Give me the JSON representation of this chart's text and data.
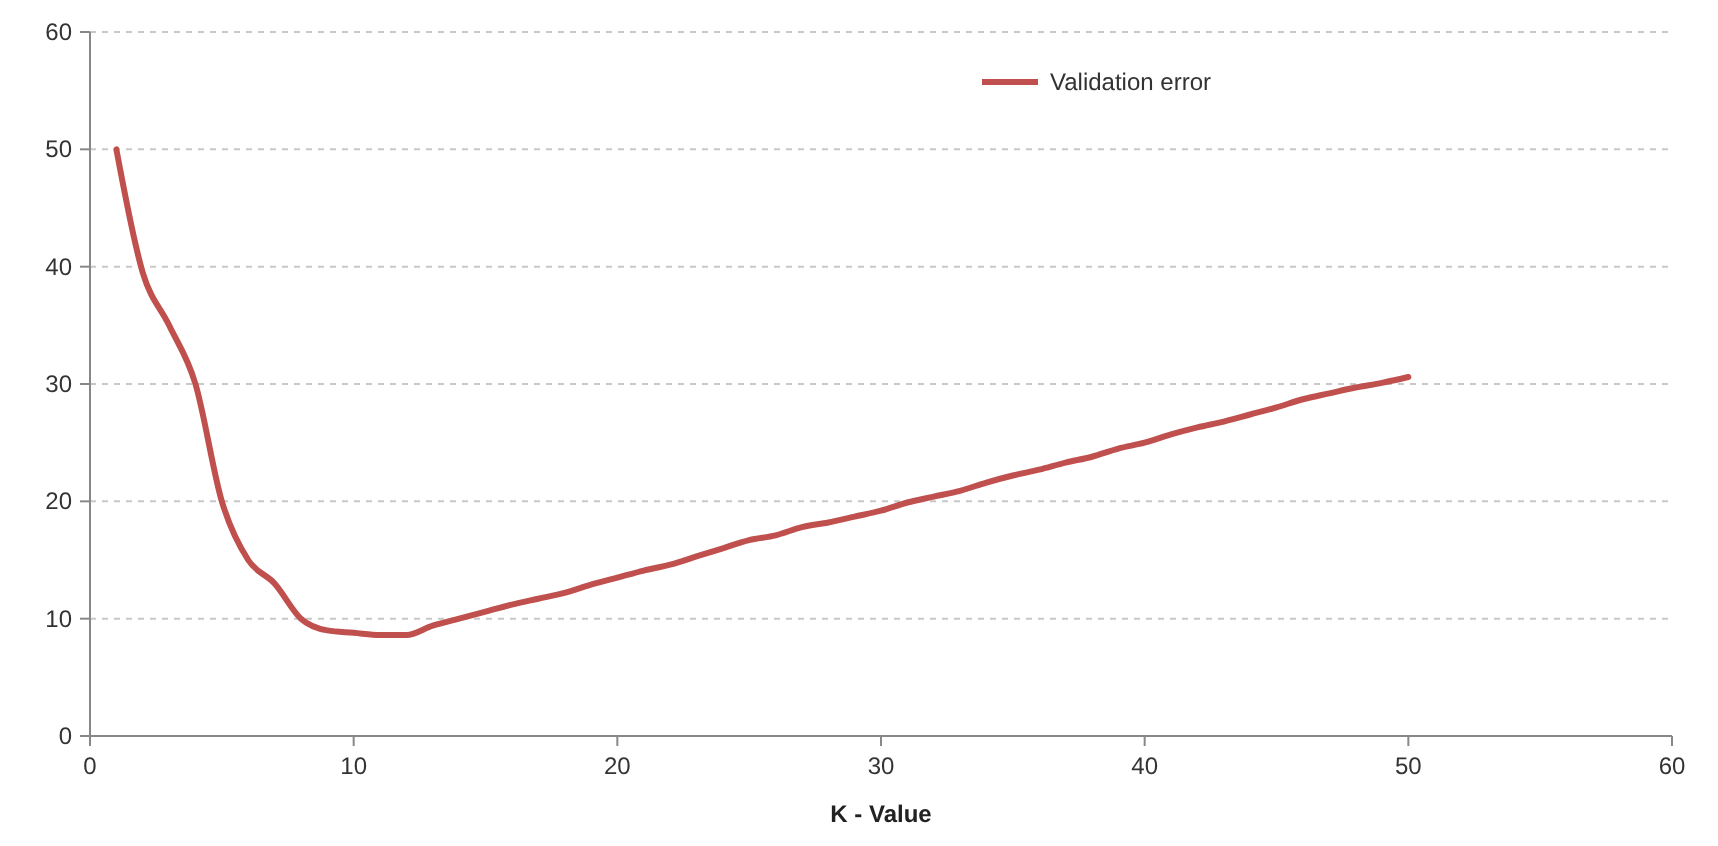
{
  "chart_data": {
    "type": "line",
    "xlabel": "K - Value",
    "x": [
      1,
      2,
      3,
      4,
      5,
      6,
      7,
      8,
      9,
      10,
      11,
      12,
      13,
      14,
      15,
      16,
      17,
      18,
      19,
      20,
      21,
      22,
      23,
      24,
      25,
      26,
      27,
      28,
      29,
      30,
      31,
      32,
      33,
      34,
      35,
      36,
      37,
      38,
      39,
      40,
      41,
      42,
      43,
      44,
      45,
      46,
      47,
      48,
      49,
      50
    ],
    "series": [
      {
        "name": "Validation error",
        "color": "#c0504d",
        "values": [
          50,
          39.5,
          35,
          30,
          20,
          15,
          13,
          10,
          9,
          8.8,
          8.6,
          8.6,
          9.4,
          10,
          10.6,
          11.2,
          11.7,
          12.2,
          12.9,
          13.5,
          14.1,
          14.6,
          15.3,
          16,
          16.7,
          17.1,
          17.8,
          18.2,
          18.7,
          19.2,
          19.9,
          20.4,
          20.9,
          21.6,
          22.2,
          22.7,
          23.3,
          23.8,
          24.5,
          25,
          25.7,
          26.3,
          26.8,
          27.4,
          28,
          28.7,
          29.2,
          29.7,
          30.1,
          30.6
        ]
      }
    ],
    "xlim": [
      0,
      60
    ],
    "xticks": [
      0,
      10,
      20,
      30,
      40,
      50,
      60
    ],
    "ylim": [
      0,
      60
    ],
    "yticks": [
      0,
      10,
      20,
      30,
      40,
      50,
      60
    ],
    "grid": "y",
    "legend": "top right",
    "marker": "none",
    "line_style": "solid"
  }
}
